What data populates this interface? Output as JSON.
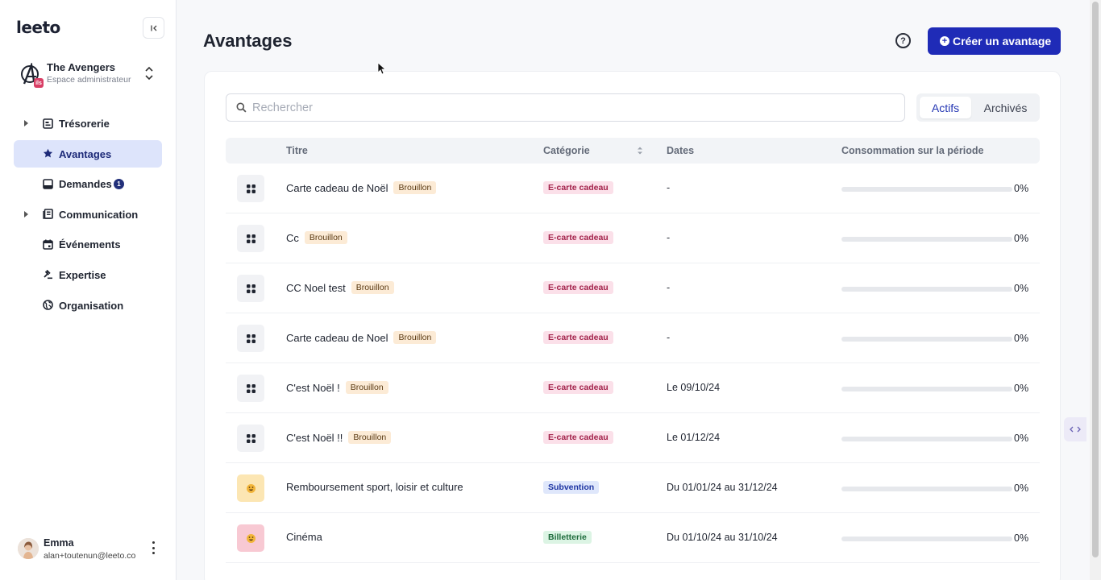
{
  "sidebar": {
    "logo": "leeto",
    "org": {
      "name": "The Avengers",
      "subtitle": "Espace administrateur",
      "badge": "ils"
    },
    "nav": [
      {
        "label": "Trésorerie",
        "icon": "treasury-icon",
        "expandable": true,
        "active": false
      },
      {
        "label": "Avantages",
        "icon": "star-icon",
        "expandable": false,
        "active": true
      },
      {
        "label": "Demandes",
        "icon": "inbox-icon",
        "expandable": false,
        "active": false,
        "count": "1"
      },
      {
        "label": "Communication",
        "icon": "newspaper-icon",
        "expandable": true,
        "active": false
      },
      {
        "label": "Événements",
        "icon": "calendar-icon",
        "expandable": false,
        "active": false
      },
      {
        "label": "Expertise",
        "icon": "gavel-icon",
        "expandable": false,
        "active": false
      },
      {
        "label": "Organisation",
        "icon": "globe-icon",
        "expandable": false,
        "active": false
      }
    ],
    "user": {
      "name": "Emma",
      "email": "alan+toutenun@leeto.co"
    }
  },
  "header": {
    "title": "Avantages",
    "create_label": "Créer un avantage"
  },
  "filters": {
    "search_placeholder": "Rechercher",
    "tabs": [
      {
        "label": "Actifs",
        "active": true
      },
      {
        "label": "Archivés",
        "active": false
      }
    ]
  },
  "table": {
    "columns": {
      "title": "Titre",
      "category": "Catégorie",
      "dates": "Dates",
      "consumption": "Consommation sur la période"
    },
    "rows": [
      {
        "title": "Carte cadeau de Noël",
        "status": "Brouillon",
        "category": "E-carte cadeau",
        "cat_type": "gift",
        "dates": "-",
        "consumption": 0,
        "consumption_label": "0%",
        "icon": "gift-card-icon"
      },
      {
        "title": "Cc",
        "status": "Brouillon",
        "category": "E-carte cadeau",
        "cat_type": "gift",
        "dates": "-",
        "consumption": 0,
        "consumption_label": "0%",
        "icon": "gift-card-icon"
      },
      {
        "title": "CC Noel test",
        "status": "Brouillon",
        "category": "E-carte cadeau",
        "cat_type": "gift",
        "dates": "-",
        "consumption": 0,
        "consumption_label": "0%",
        "icon": "gift-card-icon"
      },
      {
        "title": "Carte cadeau de Noel",
        "status": "Brouillon",
        "category": "E-carte cadeau",
        "cat_type": "gift",
        "dates": "-",
        "consumption": 0,
        "consumption_label": "0%",
        "icon": "gift-card-icon"
      },
      {
        "title": "C'est Noël !",
        "status": "Brouillon",
        "category": "E-carte cadeau",
        "cat_type": "gift",
        "dates": "Le 09/10/24",
        "consumption": 0,
        "consumption_label": "0%",
        "icon": "gift-card-icon"
      },
      {
        "title": "C'est Noël !!",
        "status": "Brouillon",
        "category": "E-carte cadeau",
        "cat_type": "gift",
        "dates": "Le 01/12/24",
        "consumption": 0,
        "consumption_label": "0%",
        "icon": "gift-card-icon"
      },
      {
        "title": "Remboursement sport, loisir et culture",
        "status": "",
        "category": "Subvention",
        "cat_type": "subsidy",
        "dates": "Du 01/01/24 au 31/12/24",
        "consumption": 0,
        "consumption_label": "0%",
        "icon": "emoji-icon"
      },
      {
        "title": "Cinéma",
        "status": "",
        "category": "Billetterie",
        "cat_type": "ticket",
        "dates": "Du 01/10/24 au 31/10/24",
        "consumption": 0,
        "consumption_label": "0%",
        "icon": "emoji-icon"
      }
    ]
  },
  "colors": {
    "accent": "#1f2bb7",
    "gift_bg": "#fbe0e9",
    "gift_fg": "#a3244c",
    "subsidy_bg": "#dfe7fb",
    "subsidy_fg": "#1f36a3",
    "ticket_bg": "#dcf4e4",
    "ticket_fg": "#1e6b3c",
    "icon_gift_bg": "#f1f2f5",
    "icon_subsidy_bg": "#fce6b3",
    "icon_ticket_bg": "#f8c9d3"
  }
}
